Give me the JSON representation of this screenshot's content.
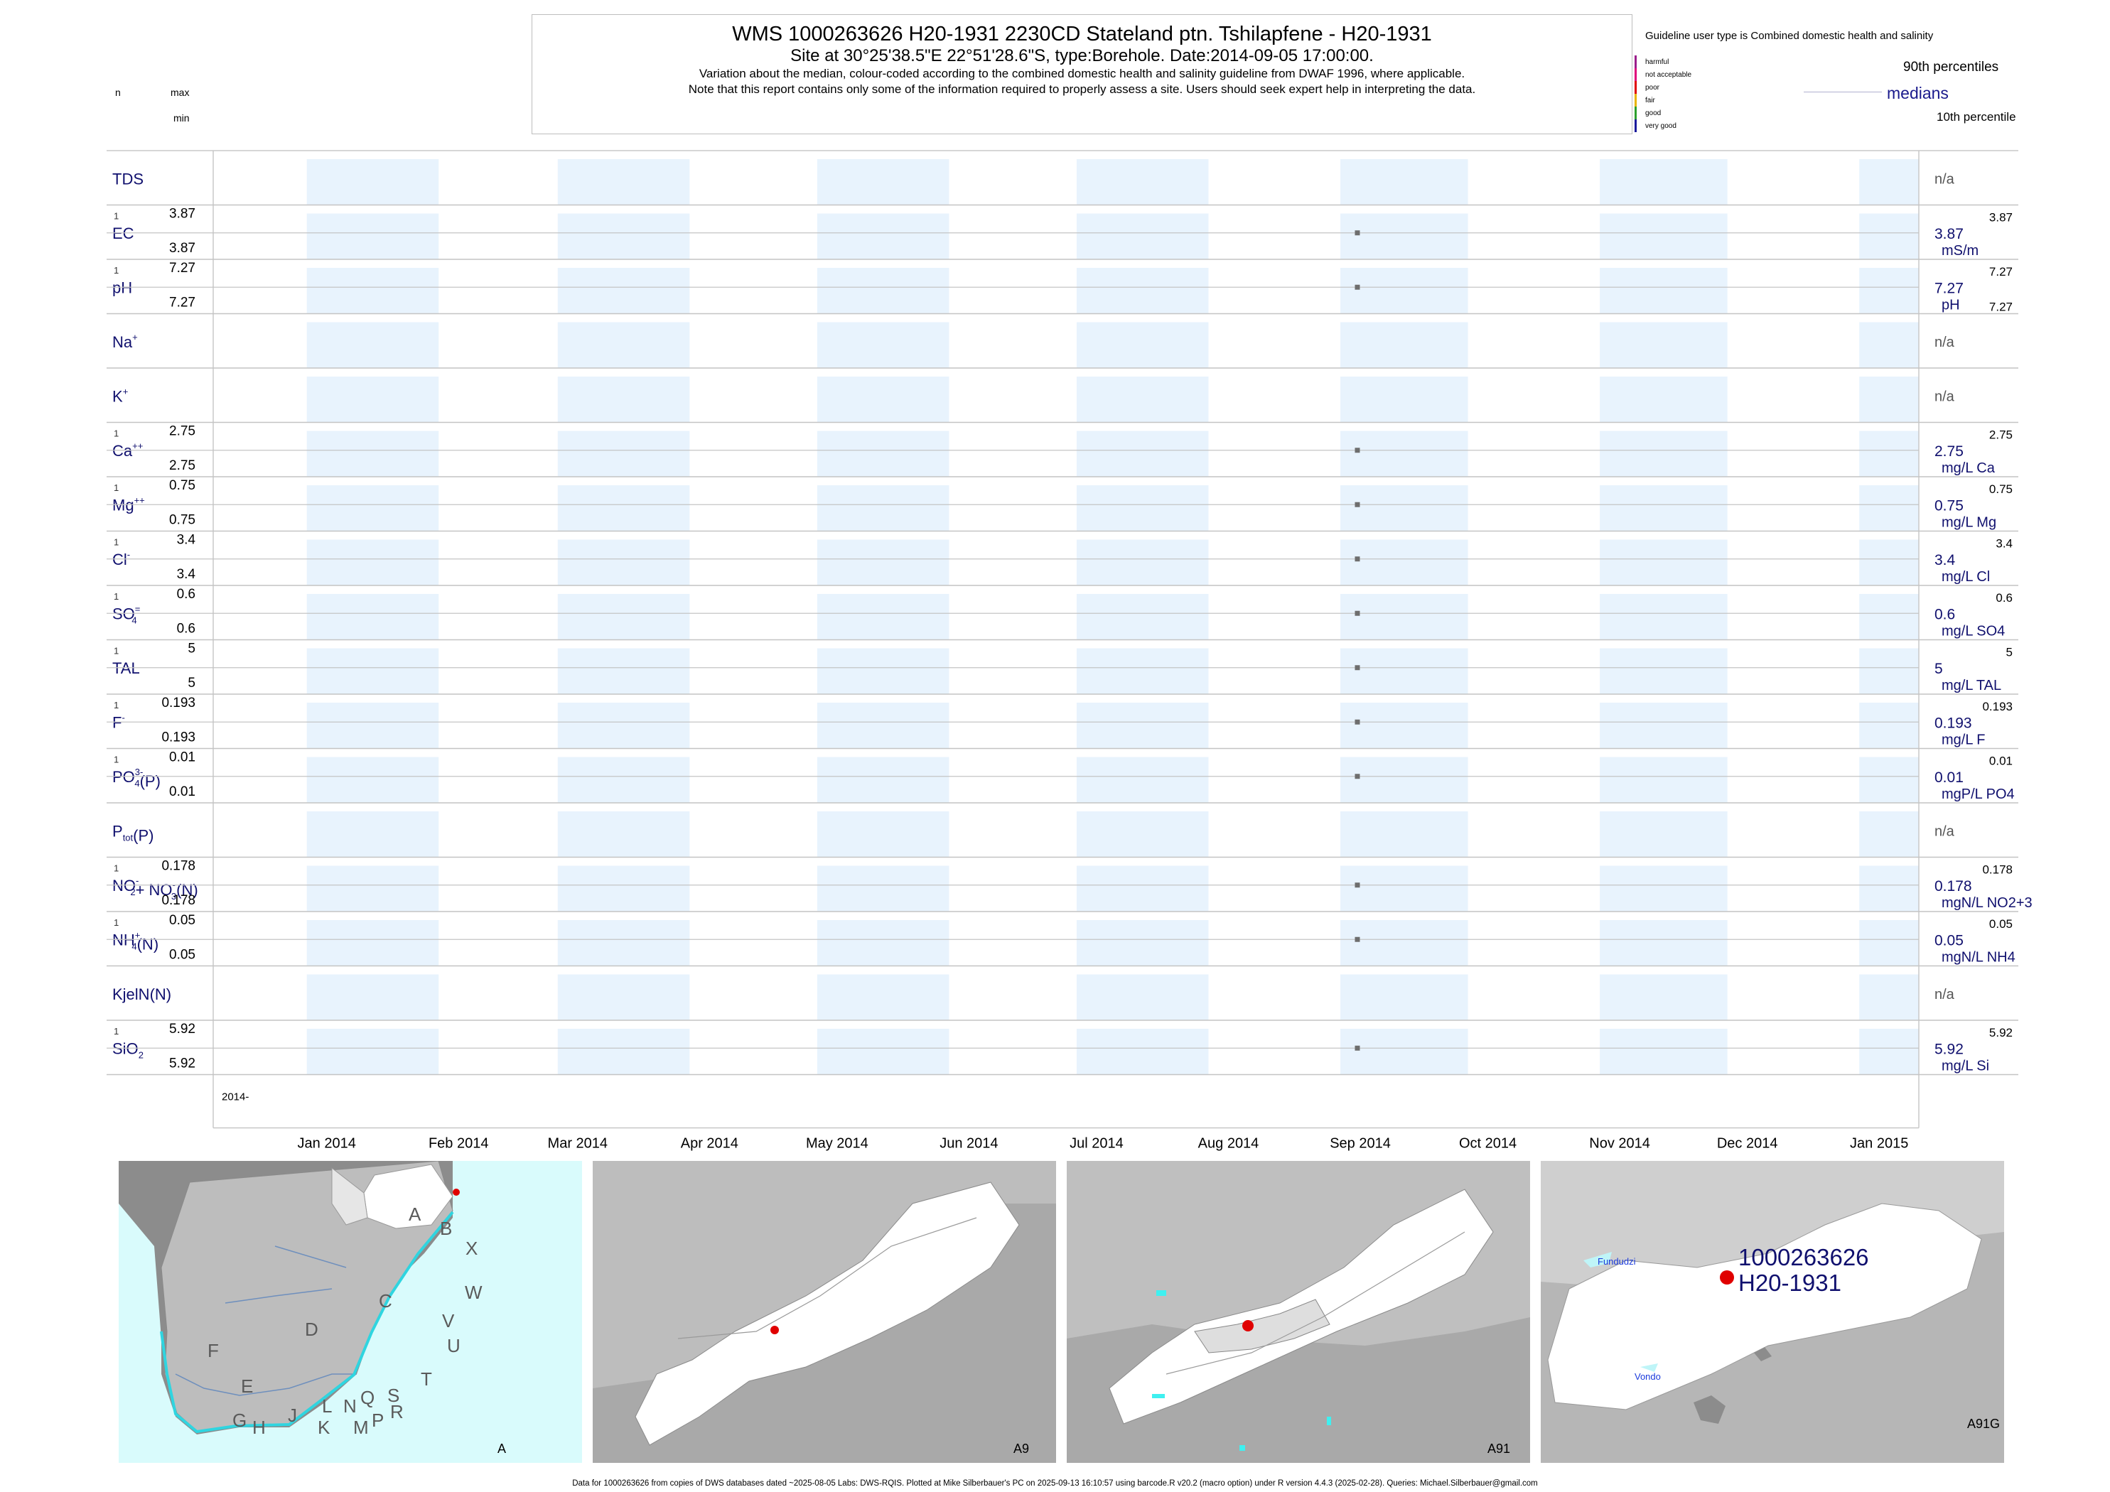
{
  "header": {
    "title": "WMS 1000263626 H20-1931 2230CD Stateland ptn. Tshilapfene - H20-1931",
    "subtitle": "Site at 30°25'38.5\"E 22°51'28.6\"S, type:Borehole. Date:2014-09-05 17:00:00.",
    "note1": "Variation about the median,  colour-coded according to the combined domestic health and salinity guideline from DWAF 1996, where applicable.",
    "note2": "Note that this report contains only some of the information required to properly assess a site. Users should seek expert help in interpreting the data."
  },
  "left_legend": {
    "n": "n",
    "max": "max",
    "min": "min"
  },
  "guideline": {
    "title": "Guideline user type is Combined domestic health and salinity",
    "classes": [
      {
        "label": "harmful",
        "color": "#9c1e8c"
      },
      {
        "label": "not acceptable",
        "color": "#e0007a"
      },
      {
        "label": "poor",
        "color": "#e00000"
      },
      {
        "label": "fair",
        "color": "#e8b400"
      },
      {
        "label": "good",
        "color": "#2da02d"
      },
      {
        "label": "very good",
        "color": "#1a1a9c"
      }
    ],
    "p90": "90th percentiles",
    "medians": "medians",
    "p10": "10th percentile"
  },
  "chart_data": {
    "type": "scatter",
    "x_axis": {
      "start_label": "2014-",
      "ticks": [
        "Jan 2014",
        "Feb 2014",
        "Mar 2014",
        "Apr 2014",
        "May 2014",
        "Jun 2014",
        "Jul 2014",
        "Aug 2014",
        "Sep 2014",
        "Oct 2014",
        "Nov 2014",
        "Dec 2014",
        "Jan 2015"
      ],
      "range": [
        "2013-12-10",
        "2015-01-15"
      ]
    },
    "sample_date": "2014-09-05",
    "panels": [
      {
        "name": "TDS",
        "label": "TDS",
        "sup": "",
        "sub": "",
        "value": null,
        "na": "n/a"
      },
      {
        "name": "EC",
        "label": "EC",
        "sup": "",
        "sub": "",
        "n": "1",
        "max": "3.87",
        "min": "3.87",
        "value": 3.87,
        "median": "3.87",
        "p90": "3.87",
        "unit": "mS/m"
      },
      {
        "name": "pH",
        "label": "pH",
        "sup": "",
        "sub": "",
        "n": "1",
        "max": "7.27",
        "min": "7.27",
        "value": 7.27,
        "median": "7.27",
        "p90": "7.27",
        "p10": "7.27",
        "unit": "pH"
      },
      {
        "name": "Na",
        "label": "Na",
        "sup": "+",
        "sub": "",
        "value": null,
        "na": "n/a"
      },
      {
        "name": "K",
        "label": "K",
        "sup": "+",
        "sub": "",
        "value": null,
        "na": "n/a"
      },
      {
        "name": "Ca",
        "label": "Ca",
        "sup": "++",
        "sub": "",
        "n": "1",
        "max": "2.75",
        "min": "2.75",
        "value": 2.75,
        "median": "2.75",
        "p90": "2.75",
        "unit": "mg/L Ca"
      },
      {
        "name": "Mg",
        "label": "Mg",
        "sup": "++",
        "sub": "",
        "n": "1",
        "max": "0.75",
        "min": "0.75",
        "value": 0.75,
        "median": "0.75",
        "p90": "0.75",
        "unit": "mg/L Mg"
      },
      {
        "name": "Cl",
        "label": "Cl",
        "sup": "-",
        "sub": "",
        "n": "1",
        "max": "3.4",
        "min": "3.4",
        "value": 3.4,
        "median": "3.4",
        "p90": "3.4",
        "unit": "mg/L Cl"
      },
      {
        "name": "SO4",
        "label": "SO",
        "sup": "=",
        "sub": "4",
        "n": "1",
        "max": "0.6",
        "min": "0.6",
        "value": 0.6,
        "median": "0.6",
        "p90": "0.6",
        "unit": "mg/L SO4"
      },
      {
        "name": "TAL",
        "label": "TAL",
        "sup": "",
        "sub": "",
        "n": "1",
        "max": "5",
        "min": "5",
        "value": 5,
        "median": "5",
        "p90": "5",
        "unit": "mg/L TAL"
      },
      {
        "name": "F",
        "label": "F",
        "sup": "-",
        "sub": "",
        "n": "1",
        "max": "0.193",
        "min": "0.193",
        "value": 0.193,
        "median": "0.193",
        "p90": "0.193",
        "unit": "mg/L F"
      },
      {
        "name": "PO4",
        "label": "PO",
        "sup": "3-",
        "sub": "4",
        "tail": "(P)",
        "n": "1",
        "max": "0.01",
        "min": "0.01",
        "value": 0.01,
        "median": "0.01",
        "p90": "0.01",
        "unit": "mgP/L PO4"
      },
      {
        "name": "Ptot",
        "label": "P",
        "sup": "",
        "sub": "tot",
        "tail": "(P)",
        "value": null,
        "na": "n/a"
      },
      {
        "name": "NO2NO3",
        "label": "NO",
        "sup": "-",
        "sub": "2",
        "tail": "+ NO",
        "tail_sup": "-",
        "tail_sub": "3",
        "tail2": "(N)",
        "n": "1",
        "max": "0.178",
        "min": "0.178",
        "value": 0.178,
        "median": "0.178",
        "p90": "0.178",
        "unit": "mgN/L NO2+3"
      },
      {
        "name": "NH4",
        "label": "NH",
        "sup": "+",
        "sub": "4",
        "tail": "(N)",
        "n": "1",
        "max": "0.05",
        "min": "0.05",
        "value": 0.05,
        "median": "0.05",
        "p90": "0.05",
        "unit": "mgN/L NH4"
      },
      {
        "name": "KjelN",
        "label": "KjelN(N)",
        "sup": "",
        "sub": "",
        "value": null,
        "na": "n/a"
      },
      {
        "name": "SiO2",
        "label": "SiO",
        "sup": "",
        "sub": "2",
        "n": "1",
        "max": "5.92",
        "min": "5.92",
        "value": 5.92,
        "median": "5.92",
        "p90": "5.92",
        "unit": "mg/L Si"
      }
    ]
  },
  "maps": {
    "regions": [
      "A",
      "B",
      "X",
      "W",
      "C",
      "V",
      "U",
      "D",
      "T",
      "F",
      "E",
      "S",
      "L",
      "N",
      "Q",
      "R",
      "J",
      "P",
      "M",
      "G",
      "H",
      "K"
    ],
    "panel_labels": [
      "A",
      "A9",
      "A91",
      "A91G"
    ],
    "site_id": "1000263626",
    "site_name": "H20-1931",
    "places": [
      "Fundudzi",
      "Vondo"
    ]
  },
  "footer": "Data for 1000263626 from copies of DWS databases dated ~2025-08-05 Labs: DWS-RQIS. Plotted at Mike Silberbauer's PC on 2025-09-13 16:10:57 using barcode.R v20.2 (macro option) under R version 4.4.3 (2025-02-28). Queries: Michael.Silberbauer@gmail.com"
}
